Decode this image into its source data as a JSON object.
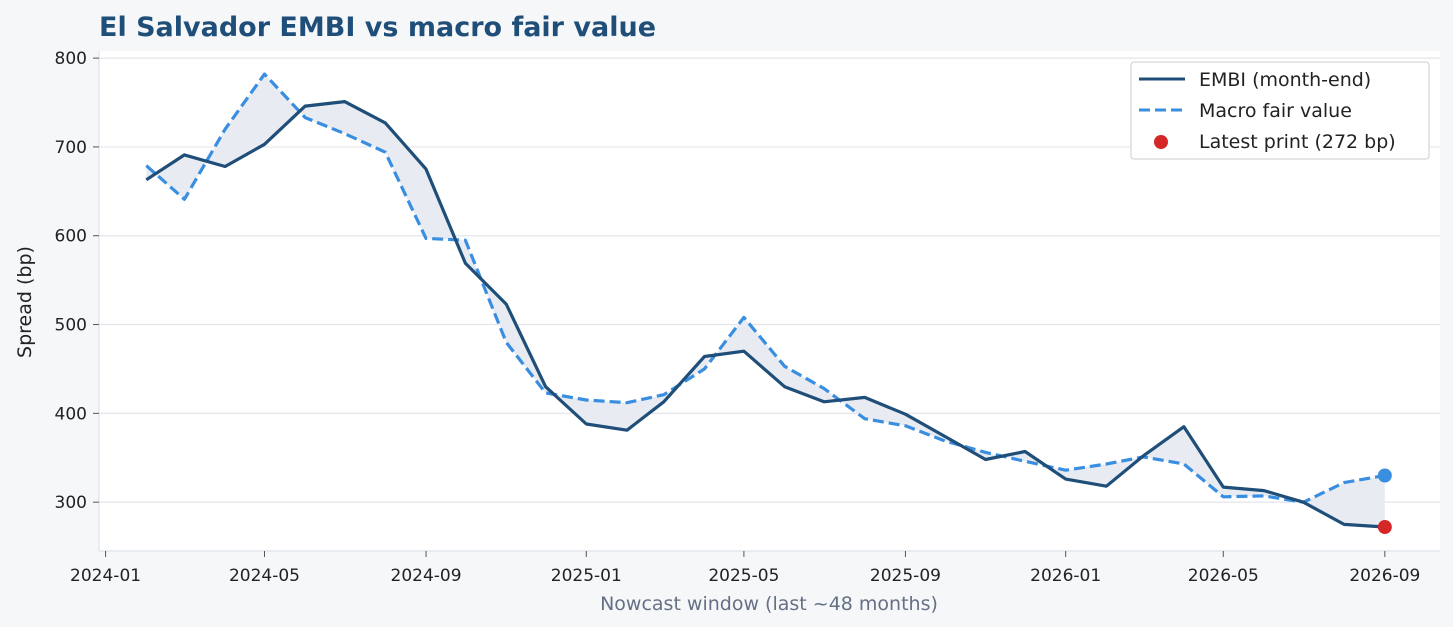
{
  "chart_data": {
    "type": "line",
    "title": "El Salvador EMBI vs macro fair value",
    "xlabel": "Nowcast window (last ~48 months)",
    "ylabel": "Spread (bp)",
    "x_tick_labels": [
      "2024-01",
      "2024-05",
      "2024-09",
      "2025-01",
      "2025-05",
      "2025-09",
      "2026-01",
      "2026-05",
      "2026-09"
    ],
    "y_ticks": [
      300,
      400,
      500,
      600,
      700,
      800
    ],
    "ylim": [
      245,
      808
    ],
    "xlim": [
      "2023-12-27",
      "2026-10-13"
    ],
    "grid": "horizontal",
    "legend_position": "top-right",
    "x": [
      "2024-02-01",
      "2024-03-01",
      "2024-04-01",
      "2024-05-01",
      "2024-06-01",
      "2024-07-01",
      "2024-08-01",
      "2024-09-01",
      "2024-10-01",
      "2024-11-01",
      "2024-12-01",
      "2025-01-01",
      "2025-02-01",
      "2025-03-01",
      "2025-04-01",
      "2025-05-01",
      "2025-06-01",
      "2025-07-01",
      "2025-08-01",
      "2025-09-01",
      "2025-10-01",
      "2025-11-01",
      "2025-12-01",
      "2026-01-01",
      "2026-02-01",
      "2026-03-01",
      "2026-04-01",
      "2026-05-01",
      "2026-06-01",
      "2026-07-01",
      "2026-08-01",
      "2026-09-01"
    ],
    "series": [
      {
        "name": "EMBI (month-end)",
        "color": "#1f4e79",
        "style": "solid",
        "values": [
          663,
          691,
          678,
          703,
          746,
          751,
          727,
          675,
          569,
          523,
          430,
          388,
          381,
          413,
          464,
          470,
          430,
          413,
          418,
          399,
          374,
          348,
          357,
          326,
          318,
          352,
          385,
          317,
          313,
          300,
          275,
          272
        ]
      },
      {
        "name": "Macro fair value",
        "color": "#3a8ee0",
        "style": "dashed",
        "values": [
          679,
          641,
          720,
          782,
          733,
          715,
          694,
          597,
          595,
          480,
          423,
          415,
          412,
          421,
          450,
          508,
          453,
          428,
          394,
          386,
          369,
          356,
          346,
          336,
          343,
          351,
          343,
          306,
          307,
          300,
          322,
          330
        ]
      }
    ],
    "latest_print": {
      "label": "Latest print (272 bp)",
      "x": "2026-09-01",
      "value": 272,
      "color": "#d62728"
    },
    "fair_value_endpoint": {
      "x": "2026-09-01",
      "value": 330,
      "color": "#3a8ee0"
    },
    "fill_color": "#e8ecf2"
  }
}
